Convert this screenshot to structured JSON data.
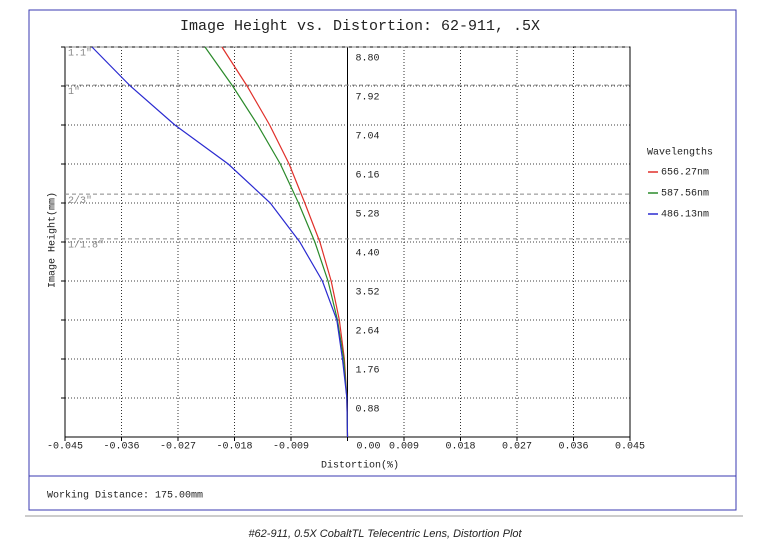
{
  "chart_data": {
    "type": "line",
    "title": "Image Height vs. Distortion: 62-911, .5X",
    "x_label": "Distortion(%)",
    "y_label": "Image Height(mm)",
    "legend_title": "Wavelengths",
    "footer": "Working Distance: 175.00mm",
    "caption": "#62-911, 0.5X CobaltTL Telecentric Lens, Distortion Plot",
    "xlim": [
      -0.045,
      0.045
    ],
    "xticks": [
      -0.045,
      -0.036,
      -0.027,
      -0.018,
      -0.009,
      {
        "value": 0,
        "label": "0.00"
      },
      0.009,
      0.018,
      0.027,
      0.036,
      0.045
    ],
    "ylim": [
      0,
      8.8
    ],
    "yticks": [
      0.88,
      1.76,
      2.64,
      3.52,
      {
        "value": 4.4,
        "label": "4.40"
      },
      5.28,
      6.16,
      7.04,
      7.92,
      {
        "value": 8.8,
        "label": "8.80"
      }
    ],
    "grid": true,
    "annotations": [
      {
        "value": 8.8,
        "label": "1.1\""
      },
      {
        "value": 7.94,
        "label": "1\""
      },
      {
        "value": 5.48,
        "label": "2/3\""
      },
      {
        "value": 4.47,
        "label": "1/1.8\""
      }
    ],
    "y": [
      0,
      0.88,
      1.76,
      2.64,
      3.52,
      4.4,
      5.28,
      6.16,
      7.04,
      7.92,
      8.8
    ],
    "series": [
      {
        "name": "656.27nm",
        "color": "#e0302a",
        "x": [
          0,
          -0.0001,
          -0.0005,
          -0.0013,
          -0.0026,
          -0.0044,
          -0.0068,
          -0.0093,
          -0.0124,
          -0.016,
          -0.02
        ]
      },
      {
        "name": "587.56nm",
        "color": "#2a8a2a",
        "x": [
          0,
          -0.0001,
          -0.0006,
          -0.0016,
          -0.0031,
          -0.0052,
          -0.0078,
          -0.0107,
          -0.0143,
          -0.0183,
          -0.0227
        ]
      },
      {
        "name": "486.13nm",
        "color": "#2a2ad0",
        "x": [
          0,
          -0.0001,
          -0.0008,
          -0.0017,
          -0.004,
          -0.0076,
          -0.0123,
          -0.019,
          -0.0275,
          -0.0346,
          -0.0407
        ]
      }
    ]
  }
}
